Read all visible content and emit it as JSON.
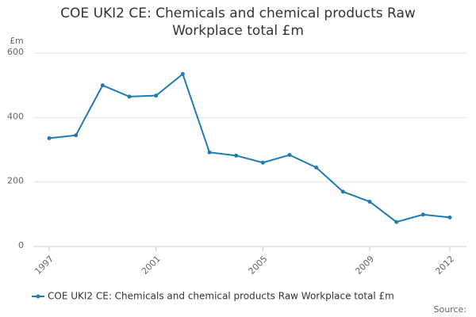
{
  "chart_data": {
    "type": "line",
    "title": "COE UKI2 CE: Chemicals and chemical products Raw Workplace total £m",
    "y_label": "£m",
    "source": "Source:",
    "x": [
      1997,
      1998,
      1999,
      2000,
      2001,
      2002,
      2003,
      2004,
      2005,
      2006,
      2007,
      2008,
      2009,
      2010,
      2011,
      2012
    ],
    "series": [
      {
        "name": "COE UKI2 CE: Chemicals and chemical products Raw Workplace total £m",
        "color": "#1f7bb6",
        "values": [
          336,
          345,
          500,
          465,
          468,
          535,
          292,
          282,
          260,
          284,
          245,
          170,
          139,
          76,
          99,
          90
        ]
      }
    ],
    "xlim": [
      1997,
      2012
    ],
    "xticks": [
      1997,
      2001,
      2005,
      2009,
      2012
    ],
    "ylim": [
      0,
      600
    ],
    "yticks": [
      0,
      200,
      400,
      600
    ],
    "grid": true,
    "legend": "bottom"
  }
}
